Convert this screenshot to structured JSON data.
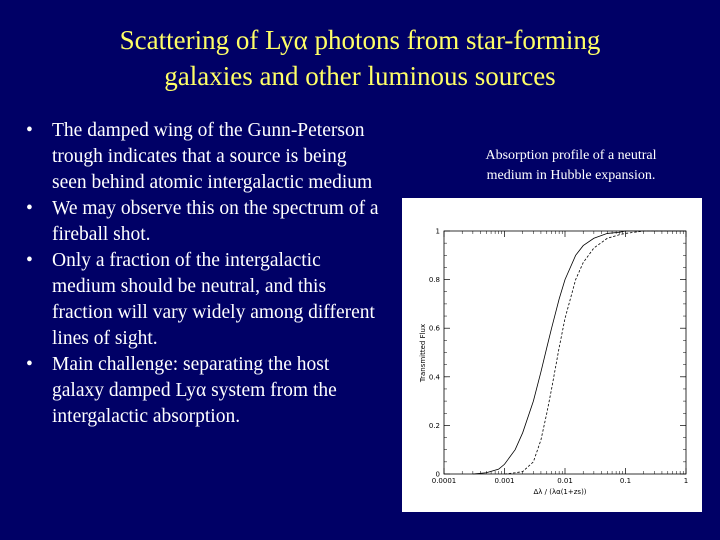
{
  "title": {
    "line1": "Scattering of Lyα photons from  star-forming",
    "line2": "galaxies and other luminous sources"
  },
  "bullets": [
    "The damped wing of the Gunn-Peterson trough indicates that a source is being seen behind atomic intergalactic medium",
    "We may observe this on the spectrum of a fireball shot.",
    "Only a fraction of the intergalactic medium should be neutral, and this fraction will vary widely among different lines of sight.",
    "Main challenge: separating the host galaxy damped Lyα system from the intergalactic absorption."
  ],
  "bullet_glyph": "•",
  "caption": {
    "line1": "Absorption profile of a neutral",
    "line2": "medium in Hubble expansion."
  },
  "chart_data": {
    "type": "line",
    "xscale": "log",
    "xlim": [
      0.0001,
      1
    ],
    "ylim": [
      0,
      1
    ],
    "xlabel": "Δλ / (λα(1+zs))",
    "ylabel": "Transmitted Flux",
    "x_tick_labels": [
      "0.0001",
      "0.001",
      "0.01",
      "0.1",
      "1"
    ],
    "y_tick_labels": [
      "0",
      "0.2",
      "0.4",
      "0.6",
      "0.8",
      "1"
    ],
    "x_ticks": [
      0.0001,
      0.001,
      0.01,
      0.1,
      1
    ],
    "y_ticks": [
      0,
      0.2,
      0.4,
      0.6,
      0.8,
      1
    ],
    "series": [
      {
        "style": "solid",
        "x": [
          0.0003,
          0.0005,
          0.0008,
          0.001,
          0.0015,
          0.002,
          0.003,
          0.004,
          0.005,
          0.006,
          0.008,
          0.01,
          0.015,
          0.02,
          0.03,
          0.05,
          0.08,
          0.1,
          0.2,
          0.5,
          1
        ],
        "y": [
          0,
          0.005,
          0.02,
          0.04,
          0.1,
          0.17,
          0.3,
          0.42,
          0.52,
          0.6,
          0.72,
          0.8,
          0.9,
          0.94,
          0.97,
          0.99,
          0.995,
          1,
          1,
          1,
          1
        ]
      },
      {
        "style": "dashed",
        "x": [
          0.001,
          0.0015,
          0.002,
          0.003,
          0.004,
          0.005,
          0.006,
          0.008,
          0.01,
          0.015,
          0.02,
          0.03,
          0.05,
          0.08,
          0.1,
          0.2,
          0.5,
          1
        ],
        "y": [
          0,
          0.005,
          0.01,
          0.05,
          0.14,
          0.25,
          0.35,
          0.52,
          0.64,
          0.8,
          0.87,
          0.93,
          0.97,
          0.985,
          0.99,
          1,
          1,
          1
        ]
      }
    ]
  }
}
